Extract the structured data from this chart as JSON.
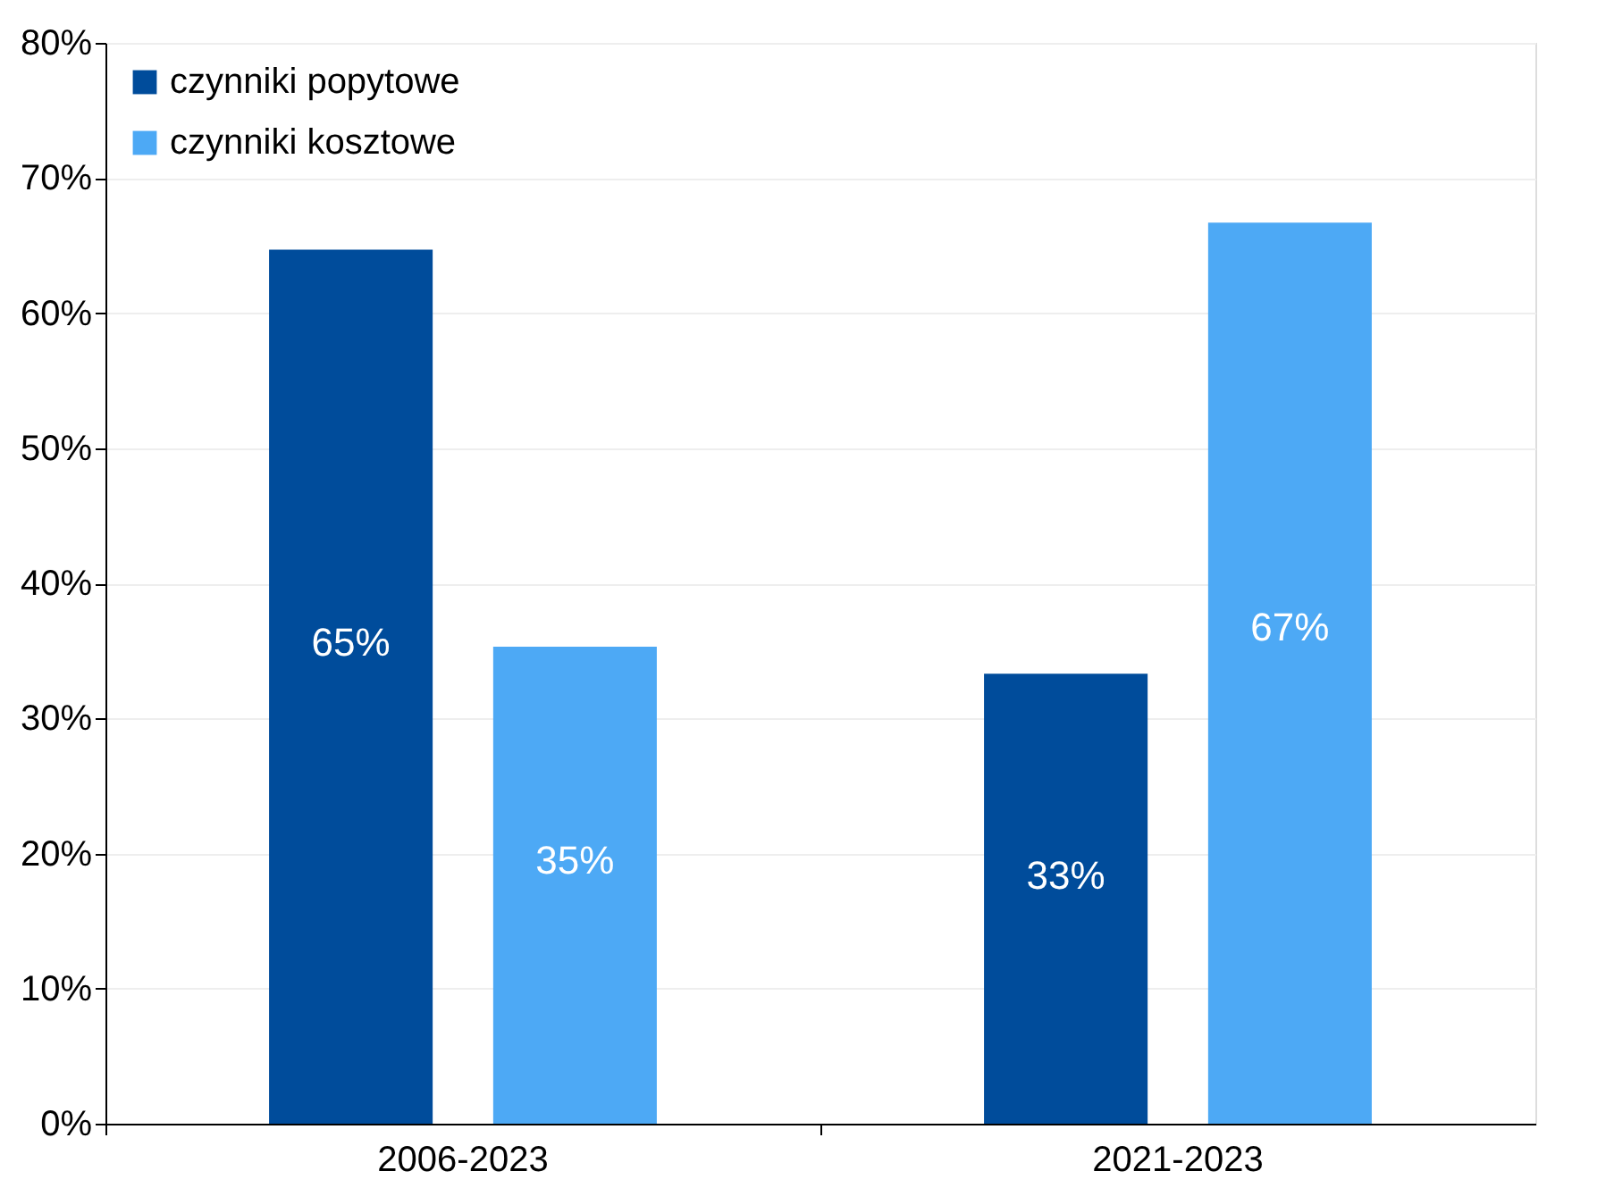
{
  "chart_data": {
    "type": "bar",
    "categories": [
      "2006-2023",
      "2021-2023"
    ],
    "series": [
      {
        "name": "czynniki popytowe",
        "color": "#004c9b",
        "values": [
          64.7,
          33.3
        ],
        "value_labels": [
          "65%",
          "33%"
        ]
      },
      {
        "name": "czynniki kosztowe",
        "color": "#4da9f5",
        "values": [
          35.3,
          66.7
        ],
        "value_labels": [
          "35%",
          "67%"
        ]
      }
    ],
    "ylim": [
      0,
      80
    ],
    "yticks": [
      {
        "value": 0,
        "label": "0%"
      },
      {
        "value": 10,
        "label": "10%"
      },
      {
        "value": 20,
        "label": "20%"
      },
      {
        "value": 30,
        "label": "30%"
      },
      {
        "value": 40,
        "label": "40%"
      },
      {
        "value": 50,
        "label": "50%"
      },
      {
        "value": 60,
        "label": "60%"
      },
      {
        "value": 70,
        "label": "70%"
      },
      {
        "value": 80,
        "label": "80%"
      }
    ],
    "grid": "y",
    "legend": "top left"
  }
}
